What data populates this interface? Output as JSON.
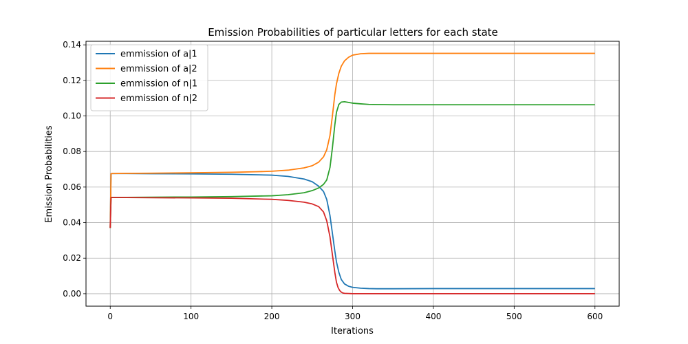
{
  "chart_data": {
    "type": "line",
    "title": "Emission Probabilities of particular letters for each state",
    "xlabel": "Iterations",
    "ylabel": "Emission Probabilities",
    "xlim": [
      -30,
      630
    ],
    "ylim": [
      -0.007,
      0.142
    ],
    "xticks": [
      0,
      100,
      200,
      300,
      400,
      500,
      600
    ],
    "xtick_labels": [
      "0",
      "100",
      "200",
      "300",
      "400",
      "500",
      "600"
    ],
    "yticks": [
      0.0,
      0.02,
      0.04,
      0.06,
      0.08,
      0.1,
      0.12,
      0.14
    ],
    "ytick_labels": [
      "0.00",
      "0.02",
      "0.04",
      "0.06",
      "0.08",
      "0.10",
      "0.12",
      "0.14"
    ],
    "grid": true,
    "legend_position": "top-left",
    "series": [
      {
        "name": "emmission of a|1",
        "color": "#1f77b4",
        "x": [
          0,
          1,
          2,
          20,
          50,
          100,
          150,
          200,
          220,
          240,
          250,
          258,
          264,
          268,
          272,
          275,
          278,
          280,
          283,
          286,
          290,
          295,
          300,
          310,
          320,
          330,
          340,
          350,
          400,
          500,
          600
        ],
        "y": [
          0.037,
          0.0675,
          0.0676,
          0.0676,
          0.0675,
          0.0674,
          0.0672,
          0.0667,
          0.066,
          0.0645,
          0.063,
          0.0605,
          0.0575,
          0.053,
          0.044,
          0.034,
          0.024,
          0.018,
          0.012,
          0.008,
          0.0055,
          0.0042,
          0.0036,
          0.0031,
          0.0029,
          0.0028,
          0.0028,
          0.0028,
          0.0029,
          0.0029,
          0.0029
        ]
      },
      {
        "name": "emmission of a|2",
        "color": "#ff7f0e",
        "x": [
          0,
          1,
          2,
          20,
          50,
          100,
          150,
          180,
          200,
          220,
          240,
          250,
          258,
          264,
          268,
          272,
          275,
          278,
          280,
          283,
          286,
          290,
          295,
          300,
          310,
          320,
          330,
          350,
          400,
          500,
          600
        ],
        "y": [
          0.037,
          0.0675,
          0.0676,
          0.0677,
          0.0678,
          0.068,
          0.0683,
          0.0686,
          0.0689,
          0.0695,
          0.0708,
          0.072,
          0.074,
          0.077,
          0.081,
          0.089,
          0.1,
          0.112,
          0.118,
          0.124,
          0.128,
          0.131,
          0.133,
          0.1342,
          0.135,
          0.1352,
          0.1352,
          0.1352,
          0.1352,
          0.1352,
          0.1352
        ]
      },
      {
        "name": "emmission of n|1",
        "color": "#2ca02c",
        "x": [
          0,
          1,
          2,
          20,
          50,
          100,
          150,
          200,
          220,
          240,
          250,
          258,
          264,
          268,
          272,
          275,
          278,
          280,
          283,
          286,
          290,
          295,
          300,
          310,
          320,
          330,
          350,
          400,
          500,
          600
        ],
        "y": [
          0.037,
          0.054,
          0.0542,
          0.0542,
          0.0543,
          0.0544,
          0.0546,
          0.0551,
          0.0557,
          0.0568,
          0.058,
          0.0595,
          0.0615,
          0.064,
          0.071,
          0.082,
          0.095,
          0.102,
          0.1065,
          0.1078,
          0.108,
          0.1076,
          0.1072,
          0.1068,
          0.1065,
          0.1064,
          0.1063,
          0.1063,
          0.1063,
          0.1063
        ]
      },
      {
        "name": "emmission of n|2",
        "color": "#d62728",
        "x": [
          0,
          1,
          2,
          20,
          50,
          100,
          150,
          200,
          220,
          240,
          250,
          258,
          264,
          268,
          272,
          275,
          278,
          280,
          282,
          284,
          286,
          288,
          290,
          295,
          300,
          320,
          350,
          400,
          500,
          600
        ],
        "y": [
          0.037,
          0.054,
          0.0541,
          0.0541,
          0.054,
          0.0539,
          0.0537,
          0.0531,
          0.0525,
          0.0515,
          0.0505,
          0.049,
          0.046,
          0.041,
          0.032,
          0.022,
          0.012,
          0.0065,
          0.0035,
          0.0018,
          0.0009,
          0.0004,
          0.0002,
          0.0001,
          0.0,
          0.0,
          0.0,
          0.0,
          0.0,
          0.0
        ]
      }
    ]
  }
}
